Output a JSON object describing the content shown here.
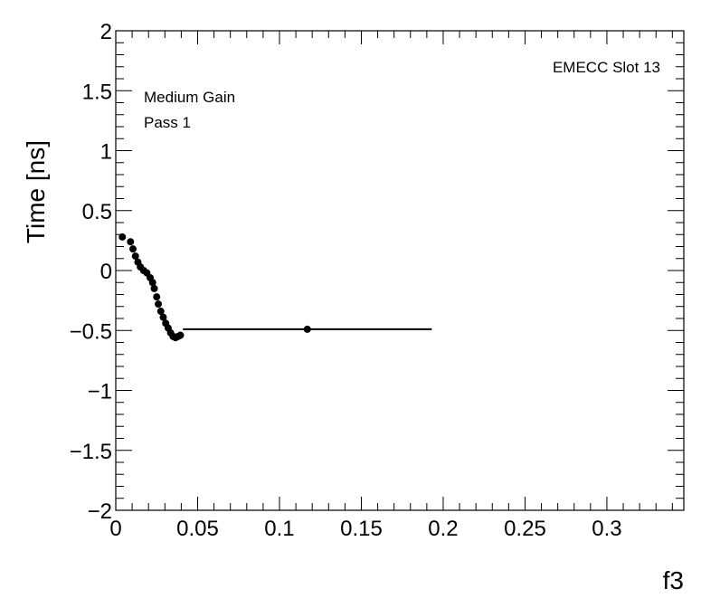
{
  "chart_data": {
    "type": "scatter",
    "title": "",
    "xlabel": "f3",
    "ylabel": "Time [ns]",
    "xlim": [
      0,
      0.347
    ],
    "ylim": [
      -2,
      2
    ],
    "x_ticks": [
      0,
      0.05,
      0.1,
      0.15,
      0.2,
      0.25,
      0.3
    ],
    "x_tick_labels": [
      "0",
      "0.05",
      "0.1",
      "0.15",
      "0.2",
      "0.25",
      "0.3"
    ],
    "y_ticks": [
      -2,
      -1.5,
      -1,
      -0.5,
      0,
      0.5,
      1,
      1.5,
      2
    ],
    "y_tick_labels": [
      "−2",
      "−1.5",
      "−1",
      "−0.5",
      "0",
      "0.5",
      "1",
      "1.5",
      "2"
    ],
    "grid": false,
    "annotations": {
      "top_right": "EMECC Slot 13",
      "line1": "Medium Gain",
      "line2": "Pass 1"
    },
    "series": [
      {
        "color": "#000000",
        "points": [
          {
            "x": 0.004,
            "y": 0.28,
            "xerr": 0.002,
            "yerr": 0.0
          },
          {
            "x": 0.009,
            "y": 0.24,
            "xerr": 0.0005,
            "yerr": 0.01
          },
          {
            "x": 0.0105,
            "y": 0.18,
            "xerr": 0.0005,
            "yerr": 0.01
          },
          {
            "x": 0.012,
            "y": 0.12,
            "xerr": 0.0005,
            "yerr": 0.01
          },
          {
            "x": 0.0135,
            "y": 0.07,
            "xerr": 0.0005,
            "yerr": 0.01
          },
          {
            "x": 0.015,
            "y": 0.03,
            "xerr": 0.0005,
            "yerr": 0.01
          },
          {
            "x": 0.017,
            "y": 0.0,
            "xerr": 0.0005,
            "yerr": 0.01
          },
          {
            "x": 0.019,
            "y": -0.02,
            "xerr": 0.0005,
            "yerr": 0.01
          },
          {
            "x": 0.021,
            "y": -0.06,
            "xerr": 0.0005,
            "yerr": 0.01
          },
          {
            "x": 0.0225,
            "y": -0.1,
            "xerr": 0.0005,
            "yerr": 0.01
          },
          {
            "x": 0.0235,
            "y": -0.15,
            "xerr": 0.0005,
            "yerr": 0.01
          },
          {
            "x": 0.025,
            "y": -0.22,
            "xerr": 0.0005,
            "yerr": 0.01
          },
          {
            "x": 0.026,
            "y": -0.28,
            "xerr": 0.0005,
            "yerr": 0.01
          },
          {
            "x": 0.0275,
            "y": -0.34,
            "xerr": 0.0005,
            "yerr": 0.01
          },
          {
            "x": 0.029,
            "y": -0.39,
            "xerr": 0.0005,
            "yerr": 0.01
          },
          {
            "x": 0.0305,
            "y": -0.44,
            "xerr": 0.0005,
            "yerr": 0.01
          },
          {
            "x": 0.032,
            "y": -0.48,
            "xerr": 0.0005,
            "yerr": 0.01
          },
          {
            "x": 0.0335,
            "y": -0.52,
            "xerr": 0.0005,
            "yerr": 0.02
          },
          {
            "x": 0.035,
            "y": -0.55,
            "xerr": 0.0005,
            "yerr": 0.02
          },
          {
            "x": 0.0365,
            "y": -0.56,
            "xerr": 0.0005,
            "yerr": 0.02
          },
          {
            "x": 0.038,
            "y": -0.55,
            "xerr": 0.0005,
            "yerr": 0.01
          },
          {
            "x": 0.0395,
            "y": -0.54,
            "xerr": 0.0005,
            "yerr": 0.01
          },
          {
            "x": 0.117,
            "y": -0.49,
            "xerr": 0.076,
            "yerr": 0.0
          }
        ]
      }
    ]
  }
}
